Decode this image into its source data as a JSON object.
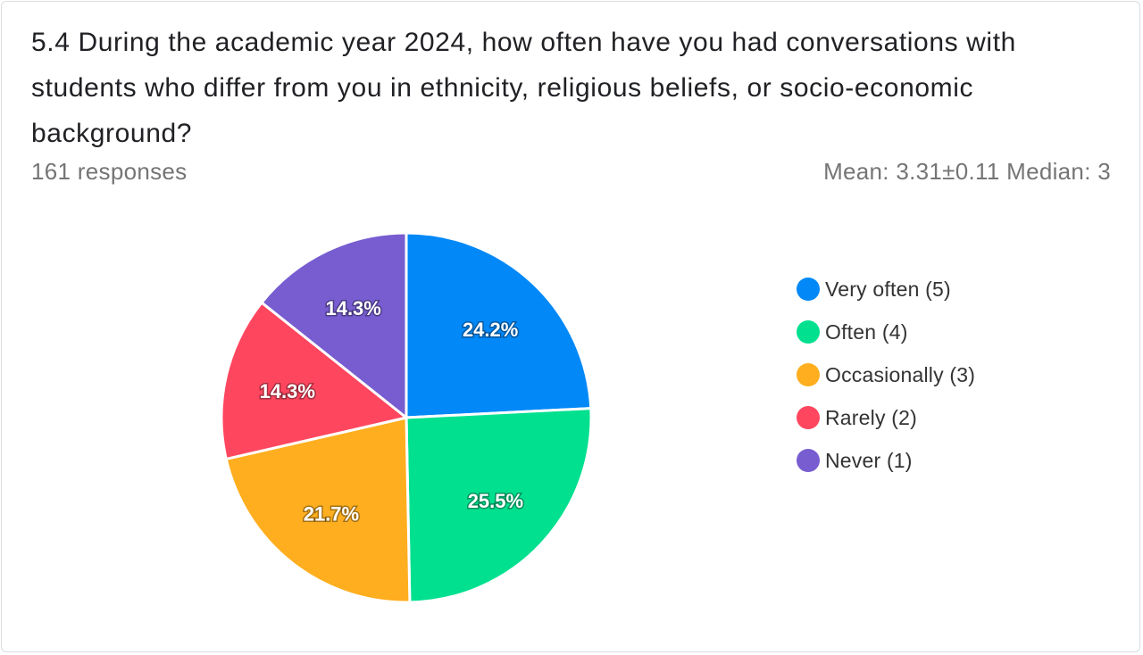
{
  "question": "5.4  During the academic year 2024, how often have you had conversations with students who differ from you in ethnicity, religious beliefs, or socio-economic background?",
  "responses_text": "161 responses",
  "stats_text": "Mean: 3.31±0.11 Median: 3",
  "chart_data": {
    "type": "pie",
    "categories": [
      "Very often (5)",
      "Often (4)",
      "Occasionally (3)",
      "Rarely (2)",
      "Never (1)"
    ],
    "values": [
      24.2,
      25.5,
      21.7,
      14.3,
      14.3
    ],
    "value_labels": [
      "24.2%",
      "25.5%",
      "21.7%",
      "14.3%",
      "14.3%"
    ],
    "colors": [
      "#0288f7",
      "#00e08f",
      "#feae1e",
      "#ff465f",
      "#775dd0"
    ],
    "legend_position": "right"
  }
}
